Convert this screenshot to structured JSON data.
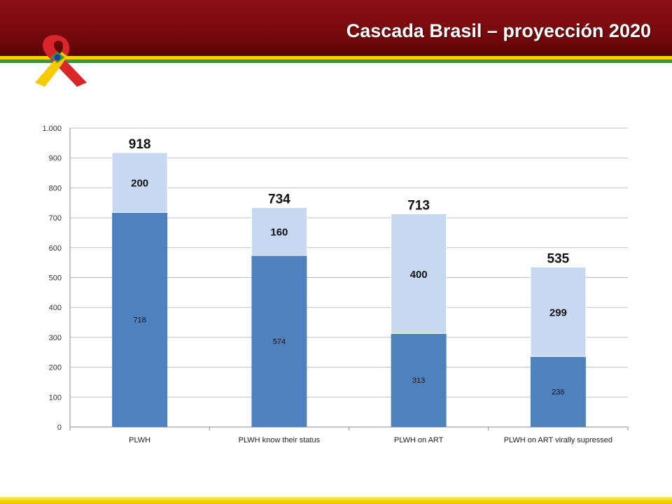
{
  "header": {
    "title": "Cascada Brasil – proyección 2020",
    "logo_icon": "aids-ribbon-brazil-icon",
    "colors": {
      "bar": "#7a0a0d",
      "stripe_yellow": "#f5d200",
      "stripe_green": "#2e9a3a"
    }
  },
  "chart_data": {
    "type": "bar",
    "stacked": true,
    "categories": [
      "PLWH",
      "PLWH know their status",
      "PLWH on ART",
      "PLWH on ART virally supressed"
    ],
    "series": [
      {
        "values": [
          718,
          574,
          313,
          236
        ],
        "color": "#4f81bd"
      },
      {
        "values": [
          200,
          160,
          400,
          299
        ],
        "color": "#c6d9f1"
      }
    ],
    "totals": [
      918,
      734,
      713,
      535
    ],
    "ylim": [
      0,
      1000
    ],
    "yticks": [
      {
        "value": 0,
        "label": "0"
      },
      {
        "value": 100,
        "label": "100"
      },
      {
        "value": 200,
        "label": "200"
      },
      {
        "value": 300,
        "label": "300"
      },
      {
        "value": 400,
        "label": "400"
      },
      {
        "value": 500,
        "label": "500"
      },
      {
        "value": 600,
        "label": "600"
      },
      {
        "value": 700,
        "label": "700"
      },
      {
        "value": 800,
        "label": "800"
      },
      {
        "value": 900,
        "label": "900"
      },
      {
        "value": 1000,
        "label": "1.000"
      }
    ],
    "grid": true,
    "legend": "none"
  }
}
